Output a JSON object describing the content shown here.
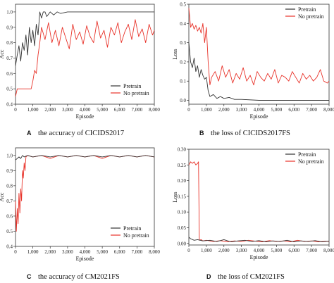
{
  "chart_data": [
    {
      "type": "line",
      "letter": "A",
      "caption": "the accuracy of CICIDS2017",
      "xlabel": "Episode",
      "ylabel": "Acc",
      "xlim": [
        0,
        8000
      ],
      "ylim": [
        0.4,
        1.05
      ],
      "xticks": [
        "0",
        "1,000",
        "2,000",
        "3,000",
        "4,000",
        "5,000",
        "6,000",
        "7,000",
        "8,000"
      ],
      "yticks": [
        "0.4",
        "0.5",
        "0.6",
        "0.7",
        "0.8",
        "0.9",
        "1.0"
      ],
      "legend_position": "bottom-right",
      "series": [
        {
          "name": "Pretrain",
          "color": "#333333",
          "x": [
            0,
            100,
            200,
            300,
            400,
            500,
            600,
            700,
            800,
            900,
            1000,
            1100,
            1200,
            1300,
            1400,
            1500,
            1600,
            1700,
            1800,
            2000,
            2200,
            2400,
            2600,
            3000,
            3500,
            4000,
            5000,
            6000,
            7000,
            8000
          ],
          "y": [
            0.65,
            0.72,
            0.78,
            0.68,
            0.8,
            0.75,
            0.85,
            0.72,
            0.9,
            0.8,
            0.88,
            0.78,
            0.92,
            0.85,
            1.0,
            0.96,
            1.0,
            1.0,
            0.97,
            1.0,
            0.98,
            1.0,
            0.99,
            1.0,
            1.0,
            1.0,
            1.0,
            1.0,
            1.0,
            1.0
          ]
        },
        {
          "name": "No pretrain",
          "color": "#e8332a",
          "x": [
            0,
            100,
            300,
            500,
            700,
            900,
            1000,
            1100,
            1200,
            1300,
            1400,
            1500,
            1700,
            1900,
            2100,
            2300,
            2500,
            2700,
            2900,
            3100,
            3300,
            3500,
            3700,
            3900,
            4100,
            4300,
            4500,
            4700,
            4900,
            5100,
            5300,
            5500,
            5700,
            5900,
            6100,
            6300,
            6500,
            6700,
            6900,
            7100,
            7300,
            7500,
            7700,
            7900,
            8000
          ],
          "y": [
            0.45,
            0.5,
            0.5,
            0.5,
            0.5,
            0.5,
            0.55,
            0.62,
            0.6,
            0.72,
            0.8,
            0.9,
            0.82,
            0.93,
            0.8,
            0.88,
            0.78,
            0.9,
            0.83,
            0.76,
            0.92,
            0.82,
            0.87,
            0.79,
            0.91,
            0.84,
            0.8,
            0.94,
            0.83,
            0.88,
            0.77,
            0.9,
            0.85,
            0.93,
            0.8,
            0.87,
            0.92,
            0.82,
            0.95,
            0.84,
            0.89,
            0.8,
            0.92,
            0.85,
            0.88
          ]
        }
      ]
    },
    {
      "type": "line",
      "letter": "B",
      "caption": "the loss of CICIDS2017FS",
      "xlabel": "Episode",
      "ylabel": "Loss",
      "xlim": [
        0,
        8000
      ],
      "ylim": [
        -0.02,
        0.5
      ],
      "xticks": [
        "0",
        "1,000",
        "2,000",
        "3,000",
        "4,000",
        "5,000",
        "6,000",
        "7,000",
        "8,000"
      ],
      "yticks": [
        "0.0",
        "0.1",
        "0.2",
        "0.3",
        "0.4",
        "0.5"
      ],
      "legend_position": "top-right",
      "series": [
        {
          "name": "Pretrain",
          "color": "#333333",
          "x": [
            0,
            100,
            200,
            300,
            400,
            500,
            600,
            700,
            800,
            900,
            1000,
            1100,
            1200,
            1400,
            1600,
            1800,
            2000,
            2300,
            2600,
            3000,
            4000,
            5000,
            6000,
            7000,
            8000
          ],
          "y": [
            0.3,
            0.2,
            0.17,
            0.22,
            0.15,
            0.18,
            0.12,
            0.16,
            0.13,
            0.11,
            0.12,
            0.05,
            0.02,
            0.03,
            0.01,
            0.02,
            0.01,
            0.015,
            0.005,
            0.005,
            0.0,
            0.0,
            0.0,
            0.0,
            0.0
          ]
        },
        {
          "name": "No pretrain",
          "color": "#e8332a",
          "x": [
            0,
            100,
            200,
            300,
            400,
            500,
            600,
            700,
            800,
            900,
            1000,
            1100,
            1200,
            1300,
            1500,
            1700,
            1900,
            2100,
            2300,
            2500,
            2700,
            2900,
            3100,
            3300,
            3500,
            3700,
            3900,
            4100,
            4300,
            4500,
            4700,
            4900,
            5100,
            5300,
            5500,
            5700,
            5900,
            6100,
            6300,
            6500,
            6700,
            6900,
            7100,
            7300,
            7500,
            7700,
            7900,
            8000
          ],
          "y": [
            0.48,
            0.38,
            0.4,
            0.37,
            0.39,
            0.36,
            0.38,
            0.35,
            0.4,
            0.3,
            0.38,
            0.2,
            0.08,
            0.12,
            0.15,
            0.1,
            0.18,
            0.12,
            0.16,
            0.09,
            0.14,
            0.11,
            0.17,
            0.1,
            0.13,
            0.08,
            0.15,
            0.12,
            0.1,
            0.14,
            0.11,
            0.16,
            0.09,
            0.13,
            0.12,
            0.1,
            0.15,
            0.12,
            0.09,
            0.14,
            0.11,
            0.13,
            0.1,
            0.12,
            0.16,
            0.1,
            0.09,
            0.1
          ]
        }
      ]
    },
    {
      "type": "line",
      "letter": "C",
      "caption": "the accuracy of CM2021FS",
      "xlabel": "Episode",
      "ylabel": "Acc",
      "xlim": [
        0,
        8000
      ],
      "ylim": [
        0.4,
        1.05
      ],
      "xticks": [
        "0",
        "1,000",
        "2,000",
        "3,000",
        "4,000",
        "5,000",
        "6,000",
        "7,000",
        "8,000"
      ],
      "yticks": [
        "0.4",
        "0.5",
        "0.6",
        "0.7",
        "0.8",
        "0.9",
        "1.0"
      ],
      "legend_position": "bottom-right",
      "series": [
        {
          "name": "Pretrain",
          "color": "#333333",
          "x": [
            0,
            100,
            200,
            300,
            400,
            500,
            700,
            1000,
            1500,
            2000,
            2500,
            3000,
            3500,
            4000,
            4500,
            5000,
            5500,
            6000,
            6500,
            7000,
            7500,
            8000
          ],
          "y": [
            0.97,
            0.98,
            0.99,
            0.98,
            1.0,
            0.99,
            1.0,
            0.99,
            1.0,
            0.99,
            1.0,
            0.99,
            1.0,
            0.99,
            1.0,
            0.99,
            1.0,
            0.99,
            1.0,
            0.99,
            1.0,
            0.99
          ]
        },
        {
          "name": "No pretrain",
          "color": "#e8332a",
          "x": [
            0,
            50,
            100,
            150,
            200,
            250,
            300,
            350,
            400,
            450,
            500,
            550,
            600,
            700,
            1000,
            1500,
            2000,
            2500,
            3000,
            3500,
            4000,
            4500,
            5000,
            5500,
            6000,
            6500,
            7000,
            7500,
            8000
          ],
          "y": [
            0.7,
            0.5,
            0.65,
            0.55,
            0.75,
            0.62,
            0.78,
            0.7,
            0.9,
            0.85,
            0.95,
            0.9,
            0.99,
            1.0,
            0.99,
            1.0,
            0.98,
            1.0,
            0.99,
            1.0,
            0.99,
            1.0,
            0.98,
            1.0,
            0.99,
            1.0,
            0.99,
            1.0,
            0.99
          ]
        }
      ]
    },
    {
      "type": "line",
      "letter": "D",
      "caption": "the loss of CM2021FS",
      "xlabel": "Episode",
      "ylabel": "Loss",
      "xlim": [
        0,
        8000
      ],
      "ylim": [
        -0.005,
        0.3
      ],
      "xticks": [
        "0",
        "1,000",
        "2,000",
        "3,000",
        "4,000",
        "5,000",
        "6,000",
        "7,000",
        "8,000"
      ],
      "yticks": [
        "0.00",
        "0.05",
        "0.10",
        "0.15",
        "0.20",
        "0.25",
        "0.30"
      ],
      "legend_position": "top-right",
      "series": [
        {
          "name": "Pretrain",
          "color": "#333333",
          "x": [
            0,
            100,
            300,
            500,
            800,
            1200,
            1600,
            2000,
            2400,
            2800,
            3200,
            3600,
            4000,
            4400,
            4800,
            5200,
            5600,
            6000,
            6400,
            6800,
            7200,
            7600,
            8000
          ],
          "y": [
            0.02,
            0.015,
            0.01,
            0.012,
            0.008,
            0.01,
            0.006,
            0.012,
            0.005,
            0.008,
            0.01,
            0.006,
            0.009,
            0.005,
            0.008,
            0.006,
            0.01,
            0.005,
            0.008,
            0.006,
            0.009,
            0.005,
            0.007
          ]
        },
        {
          "name": "No pretrain",
          "color": "#e8332a",
          "x": [
            0,
            100,
            200,
            300,
            400,
            500,
            550,
            600,
            700,
            800,
            1000,
            1400,
            1800,
            2200,
            2600,
            3000,
            3400,
            3800,
            4200,
            4600,
            5000,
            5400,
            5800,
            6200,
            6600,
            7000,
            7400,
            7800,
            8000
          ],
          "y": [
            0.25,
            0.26,
            0.255,
            0.26,
            0.25,
            0.255,
            0.26,
            0.01,
            0.012,
            0.008,
            0.01,
            0.006,
            0.009,
            0.005,
            0.008,
            0.006,
            0.01,
            0.007,
            0.005,
            0.009,
            0.006,
            0.008,
            0.005,
            0.01,
            0.006,
            0.008,
            0.005,
            0.007,
            0.006
          ]
        }
      ]
    }
  ]
}
